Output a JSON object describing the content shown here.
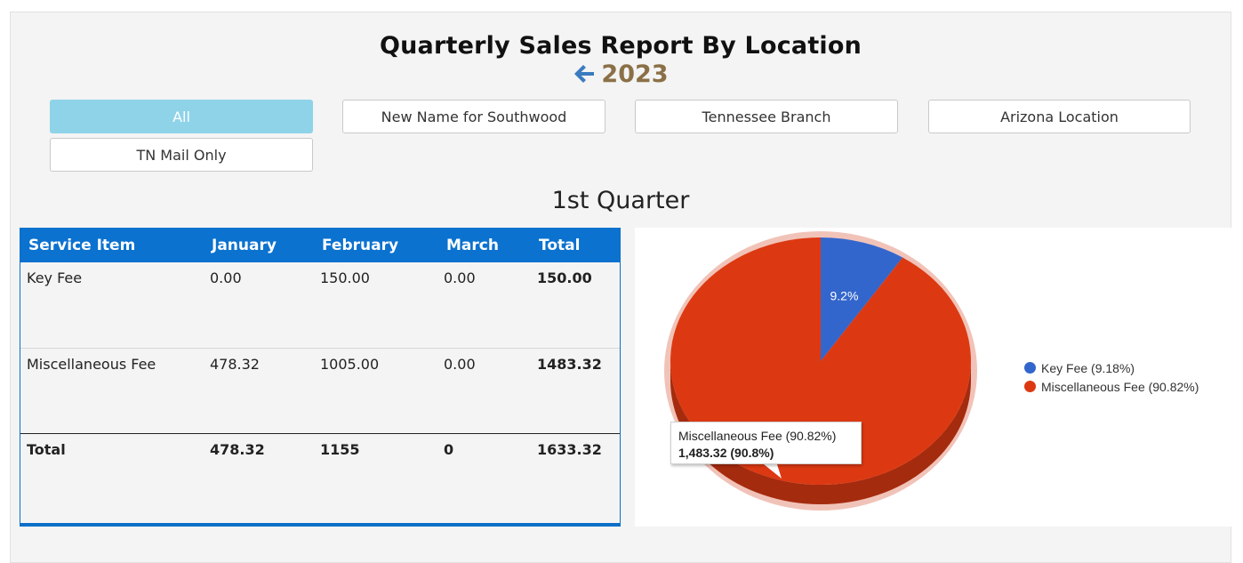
{
  "header": {
    "title": "Quarterly Sales Report By Location",
    "year": "2023"
  },
  "locations": [
    {
      "label": "All",
      "active": true
    },
    {
      "label": "New Name for Southwood",
      "active": false
    },
    {
      "label": "Tennessee Branch",
      "active": false
    },
    {
      "label": "Arizona Location",
      "active": false
    },
    {
      "label": "TN Mail Only",
      "active": false
    }
  ],
  "quarter_title": "1st Quarter",
  "table": {
    "columns": [
      "Service Item",
      "January",
      "February",
      "March",
      "Total"
    ],
    "rows": [
      [
        "Key Fee",
        "0.00",
        "150.00",
        "0.00",
        "150.00"
      ],
      [
        "Miscellaneous Fee",
        "478.32",
        "1005.00",
        "0.00",
        "1483.32"
      ]
    ],
    "total_row": [
      "Total",
      "478.32",
      "1155",
      "0",
      "1633.32"
    ]
  },
  "chart_data": {
    "type": "pie",
    "title": "",
    "slices": [
      {
        "name": "Key Fee",
        "value": 150.0,
        "percent": 9.18,
        "color": "#3366cc",
        "label": "9.2%",
        "legend": "Key Fee (9.18%)"
      },
      {
        "name": "Miscellaneous Fee",
        "value": 1483.32,
        "percent": 90.82,
        "color": "#dc3912",
        "label": "",
        "legend": "Miscellaneous Fee (90.82%)"
      }
    ],
    "legend_position": "right",
    "tooltip": {
      "title": "Miscellaneous Fee (90.82%)",
      "value": "1,483.32 (90.8%)"
    }
  },
  "colors": {
    "header_blue": "#0b72cf",
    "active_button": "#8fd3e9",
    "year_color": "#8b7047",
    "arrow_color": "#3b7bbf"
  }
}
